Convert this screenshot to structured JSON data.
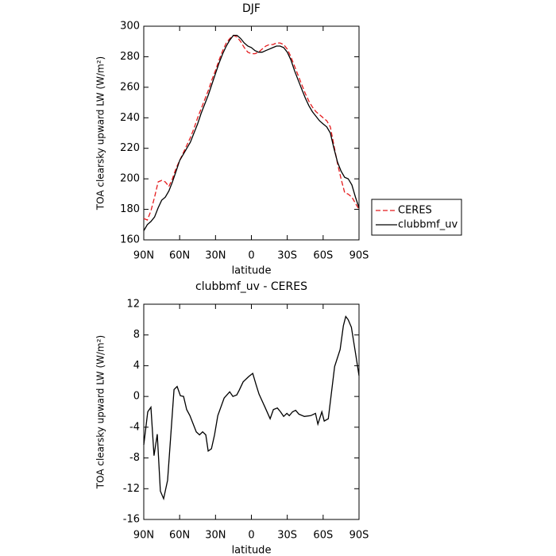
{
  "chart_data": [
    {
      "type": "line",
      "title": "DJF",
      "xlabel": "latitude",
      "ylabel": "TOA clearsky upward LW (W/m²)",
      "x": [
        90,
        87,
        84,
        81,
        78,
        75,
        72,
        69,
        66,
        63,
        60,
        57,
        54,
        51,
        48,
        45,
        42,
        39,
        36,
        33,
        30,
        27,
        24,
        21,
        18,
        15,
        12,
        9,
        6,
        3,
        0,
        -3,
        -6,
        -9,
        -12,
        -15,
        -18,
        -21,
        -24,
        -27,
        -30,
        -33,
        -36,
        -39,
        -42,
        -45,
        -48,
        -51,
        -54,
        -57,
        -60,
        -63,
        -66,
        -69,
        -72,
        -75,
        -78,
        -81,
        -84,
        -87,
        -90
      ],
      "series": [
        {
          "name": "CERES",
          "color": "#e41a1c",
          "linestyle": "dashed",
          "values": [
            174,
            173,
            179,
            188,
            198,
            199,
            198,
            195,
            200,
            207,
            212,
            217,
            222,
            227,
            233,
            240,
            246,
            252,
            258,
            265,
            271,
            278,
            284,
            289,
            292,
            294,
            293,
            290,
            286,
            283,
            282,
            282,
            283,
            285,
            287,
            288,
            288,
            289,
            289,
            288,
            285,
            280,
            274,
            268,
            262,
            256,
            251,
            247,
            244,
            242,
            240,
            238,
            234,
            222,
            210,
            200,
            191,
            190,
            188,
            184,
            180
          ]
        },
        {
          "name": "clubbmf_uv",
          "color": "#000000",
          "linestyle": "solid",
          "values": [
            166,
            170,
            172,
            175,
            181,
            186,
            188,
            192,
            198,
            205,
            212,
            216,
            220,
            224,
            230,
            236,
            243,
            249,
            255,
            262,
            269,
            276,
            282,
            287,
            291,
            294,
            294,
            292,
            289,
            287,
            286,
            284,
            283,
            283,
            284,
            285,
            286,
            287,
            287,
            286,
            283,
            278,
            271,
            265,
            259,
            253,
            248,
            244,
            241,
            238,
            236,
            234,
            230,
            220,
            211,
            205,
            201,
            200,
            196,
            188,
            181
          ]
        }
      ],
      "xlim": [
        90,
        -90
      ],
      "xticks": [
        {
          "value": 90,
          "label": "90N"
        },
        {
          "value": 60,
          "label": "60N"
        },
        {
          "value": 30,
          "label": "30N"
        },
        0,
        {
          "value": -30,
          "label": "30S"
        },
        {
          "value": -60,
          "label": "60S"
        },
        {
          "value": -90,
          "label": "90S"
        }
      ],
      "ylim": [
        160,
        300
      ],
      "yticks": [
        160,
        180,
        200,
        220,
        240,
        260,
        280,
        300
      ],
      "legend": "right"
    },
    {
      "type": "line",
      "title": "clubbmf_uv - CERES",
      "xlabel": "latitude",
      "ylabel": "TOA clearsky upward LW (W/m²)",
      "x": [
        90,
        86.7,
        84,
        81.4,
        78.7,
        76.1,
        73.4,
        70.1,
        64.7,
        62.1,
        59.4,
        56.7,
        54.1,
        51.4,
        46.1,
        43.4,
        40.8,
        38.1,
        36.1,
        33.4,
        30.8,
        28.1,
        22.8,
        18.1,
        15.5,
        12.2,
        10.2,
        6.9,
        2.2,
        -1.1,
        -3.8,
        -6.4,
        -11.1,
        -15.7,
        -18.4,
        -21.7,
        -24.4,
        -27,
        -29.7,
        -31.7,
        -34.4,
        -37,
        -39.7,
        -44.3,
        -49.6,
        -53.6,
        -55.6,
        -58.9,
        -60.9,
        -64.3,
        -69.6,
        -74.2,
        -76.9,
        -78.9,
        -80.9,
        -83.6,
        -87.6,
        -90
      ],
      "values": [
        -6.3,
        -2,
        -1.4,
        -7.7,
        -4.9,
        -12.3,
        -13.3,
        -10.9,
        0.9,
        1.3,
        0.1,
        0,
        -1.7,
        -2.5,
        -4.6,
        -5,
        -4.6,
        -5,
        -7.1,
        -6.8,
        -5,
        -2.5,
        -0.2,
        0.6,
        0,
        0.2,
        0.8,
        1.9,
        2.6,
        3,
        1.6,
        0.3,
        -1.3,
        -2.9,
        -1.7,
        -1.5,
        -2,
        -2.6,
        -2.2,
        -2.5,
        -2,
        -1.8,
        -2.3,
        -2.6,
        -2.5,
        -2.2,
        -3.6,
        -2,
        -3.2,
        -2.9,
        3.9,
        6.1,
        9.2,
        10.4,
        10,
        9,
        5.1,
        2.7
      ],
      "color": "#000000",
      "xlim": [
        90,
        -90
      ],
      "xticks": [
        {
          "value": 90,
          "label": "90N"
        },
        {
          "value": 60,
          "label": "60N"
        },
        {
          "value": 30,
          "label": "30N"
        },
        0,
        {
          "value": -30,
          "label": "30S"
        },
        {
          "value": -60,
          "label": "60S"
        },
        {
          "value": -90,
          "label": "90S"
        }
      ],
      "ylim": [
        -16,
        12
      ],
      "yticks": [
        -16,
        -12,
        -8,
        -4,
        0,
        4,
        8,
        12
      ]
    }
  ]
}
